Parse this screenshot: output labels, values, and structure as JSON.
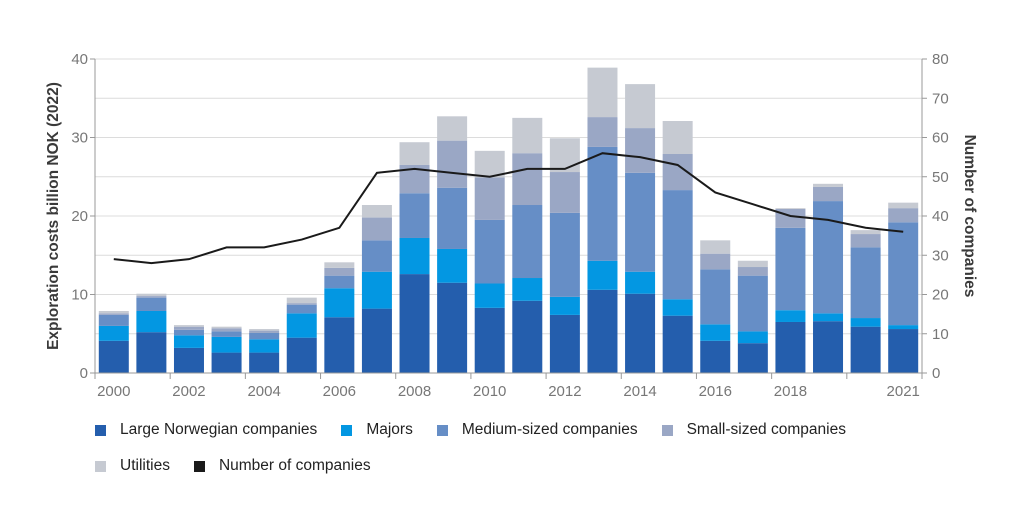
{
  "chart_data": {
    "type": "bar",
    "stacked": true,
    "categories": [
      "2000",
      "2001",
      "2002",
      "2003",
      "2004",
      "2005",
      "2006",
      "2007",
      "2008",
      "2009",
      "2010",
      "2011",
      "2012",
      "2013",
      "2014",
      "2015",
      "2016",
      "2017",
      "2018",
      "2019",
      "2020",
      "2021"
    ],
    "x_tick_labels": [
      "2000",
      "",
      "2002",
      "",
      "2004",
      "",
      "2006",
      "",
      "2008",
      "",
      "2010",
      "",
      "2012",
      "",
      "2014",
      "",
      "2016",
      "",
      "2018",
      "",
      "",
      "2021"
    ],
    "ylabel": "Exploration costs billion NOK (2022)",
    "ylabel_right": "Number of companies",
    "ylim": [
      0,
      40
    ],
    "ylim_right": [
      0,
      80
    ],
    "yticks": [
      0,
      10,
      20,
      30,
      40
    ],
    "yticks_right": [
      0,
      10,
      20,
      30,
      40,
      50,
      60,
      70,
      80
    ],
    "grid": true,
    "legend_position": "bottom",
    "series": [
      {
        "name": "Large Norwegian companies",
        "color": "#245ead",
        "values": [
          4.1,
          5.2,
          3.2,
          2.6,
          2.6,
          4.5,
          7.1,
          8.2,
          12.6,
          11.5,
          8.3,
          9.2,
          7.4,
          10.6,
          10.1,
          7.3,
          4.1,
          3.8,
          6.5,
          6.6,
          5.9,
          5.6
        ]
      },
      {
        "name": "Majors",
        "color": "#0397e2",
        "values": [
          1.9,
          2.7,
          1.6,
          2.0,
          1.7,
          3.1,
          3.7,
          4.7,
          4.6,
          4.3,
          3.1,
          2.9,
          2.3,
          3.7,
          2.8,
          2.1,
          2.1,
          1.5,
          1.5,
          1.0,
          1.1,
          0.5
        ]
      },
      {
        "name": "Medium-sized companies",
        "color": "#668ec6",
        "values": [
          1.4,
          1.7,
          0.7,
          0.7,
          0.8,
          1.1,
          1.6,
          4.0,
          5.7,
          7.8,
          8.1,
          9.3,
          10.7,
          14.5,
          12.6,
          13.9,
          7.0,
          7.1,
          10.5,
          14.3,
          9.0,
          13.1
        ]
      },
      {
        "name": "Small-sized companies",
        "color": "#9aa7c5",
        "values": [
          0.2,
          0.2,
          0.4,
          0.4,
          0.3,
          0.2,
          1.0,
          2.9,
          3.6,
          6.0,
          5.4,
          6.6,
          5.2,
          3.8,
          5.7,
          4.6,
          2.0,
          1.1,
          2.4,
          1.8,
          1.7,
          1.8
        ]
      },
      {
        "name": "Utilities",
        "color": "#c6cad2",
        "values": [
          0.3,
          0.3,
          0.2,
          0.2,
          0.2,
          0.7,
          0.7,
          1.6,
          2.9,
          3.1,
          3.4,
          4.5,
          4.3,
          6.3,
          5.6,
          4.2,
          1.7,
          0.8,
          0.1,
          0.4,
          0.5,
          0.7
        ]
      }
    ],
    "line_series": {
      "name": "Number of companies",
      "color": "#1a1a1a",
      "axis": "right",
      "values": [
        29,
        28,
        29,
        32,
        32,
        34,
        37,
        51,
        52,
        51,
        50,
        52,
        52,
        56,
        55,
        53,
        46,
        43,
        40,
        39,
        37,
        36
      ]
    }
  }
}
